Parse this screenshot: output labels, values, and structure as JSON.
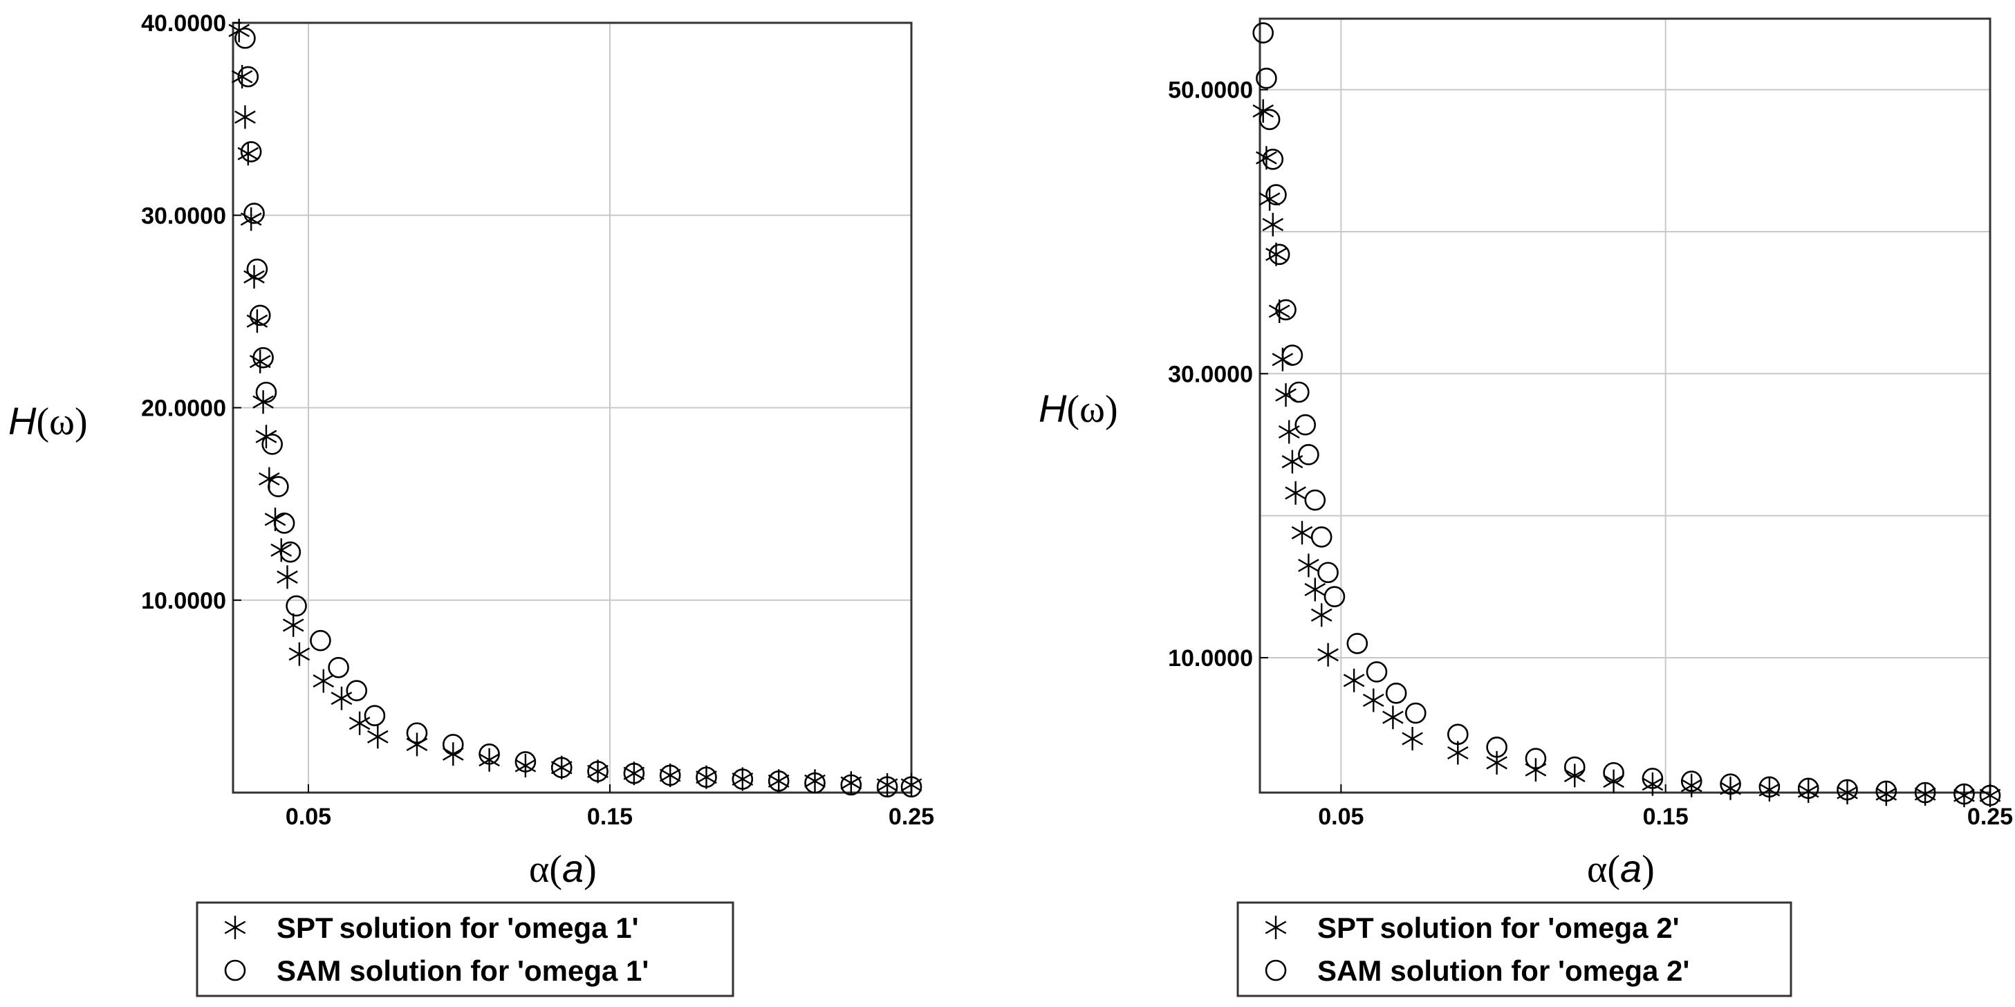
{
  "chart_data": [
    {
      "type": "scatter",
      "title": "",
      "xlabel": {
        "symbol": "α",
        "lparen": "(",
        "var": "a",
        "rparen": ")"
      },
      "ylabel": {
        "var": "H",
        "lparen": "(",
        "symbol": "ω",
        "rparen": ")"
      },
      "xlim": [
        0.025,
        0.25
      ],
      "ylim": [
        0,
        40
      ],
      "x_ticks": [
        0.05,
        0.15,
        0.25
      ],
      "x_tick_labels": [
        "0.05",
        "0.15",
        "0.25"
      ],
      "y_ticks": [
        10,
        20,
        30,
        40
      ],
      "y_tick_labels": [
        "10.0000",
        "20.0000",
        "30.0000",
        "40.0000"
      ],
      "grid": true,
      "legend_position": "bottom",
      "series": [
        {
          "name": "SPT solution for 'omega 1'",
          "marker": "star",
          "x": [
            0.027,
            0.028,
            0.029,
            0.03,
            0.031,
            0.032,
            0.033,
            0.034,
            0.035,
            0.036,
            0.037,
            0.039,
            0.041,
            0.043,
            0.045,
            0.047,
            0.055,
            0.061,
            0.067,
            0.073,
            0.086,
            0.098,
            0.11,
            0.122,
            0.134,
            0.146,
            0.158,
            0.17,
            0.182,
            0.194,
            0.206,
            0.218,
            0.23,
            0.242,
            0.25
          ],
          "y": [
            39.6,
            37.2,
            35.1,
            33.2,
            29.8,
            26.8,
            24.5,
            22.4,
            20.3,
            18.5,
            16.3,
            14.2,
            12.6,
            11.2,
            8.7,
            7.2,
            5.8,
            4.9,
            3.6,
            2.9,
            2.5,
            2.0,
            1.7,
            1.4,
            1.3,
            1.1,
            1.0,
            0.9,
            0.8,
            0.7,
            0.6,
            0.6,
            0.5,
            0.4,
            0.4
          ]
        },
        {
          "name": "SAM solution for 'omega 1'",
          "marker": "circle",
          "x": [
            0.029,
            0.03,
            0.031,
            0.032,
            0.033,
            0.034,
            0.035,
            0.036,
            0.038,
            0.04,
            0.042,
            0.044,
            0.046,
            0.054,
            0.06,
            0.066,
            0.072,
            0.086,
            0.098,
            0.11,
            0.122,
            0.134,
            0.146,
            0.158,
            0.17,
            0.182,
            0.194,
            0.206,
            0.218,
            0.23,
            0.242,
            0.25
          ],
          "y": [
            39.2,
            37.2,
            33.3,
            30.1,
            27.2,
            24.8,
            22.6,
            20.8,
            18.1,
            15.9,
            14.0,
            12.5,
            9.7,
            7.9,
            6.5,
            5.3,
            4.0,
            3.1,
            2.5,
            2.0,
            1.6,
            1.3,
            1.1,
            1.0,
            0.9,
            0.8,
            0.7,
            0.6,
            0.5,
            0.4,
            0.3,
            0.3
          ]
        }
      ],
      "legend": {
        "entries": [
          {
            "marker": "star",
            "bold": "SPT",
            "rest": "solution for 'omega 1'"
          },
          {
            "marker": "circle",
            "bold": "SAM",
            "rest": "solution for 'omega 1'"
          }
        ]
      }
    },
    {
      "type": "scatter",
      "title": "",
      "xlabel": {
        "symbol": "α",
        "lparen": "(",
        "var": "a",
        "rparen": ")"
      },
      "ylabel": {
        "var": "H",
        "lparen": "(",
        "symbol": "ω",
        "rparen": ")"
      },
      "xlim": [
        0.025,
        0.25
      ],
      "ylim": [
        0,
        55
      ],
      "x_ticks": [
        0.05,
        0.15,
        0.25
      ],
      "x_tick_labels": [
        "0.05",
        "0.15",
        "0.25"
      ],
      "y_ticks": [
        10,
        30,
        50
      ],
      "y_tick_labels": [
        "10.0000",
        "30.0000",
        "50.0000"
      ],
      "grid_y": [
        10,
        20,
        30,
        40,
        50
      ],
      "grid": true,
      "legend_position": "bottom",
      "series": [
        {
          "name": "SPT solution for 'omega 2'",
          "marker": "star",
          "x": [
            0.026,
            0.027,
            0.028,
            0.029,
            0.03,
            0.031,
            0.032,
            0.033,
            0.034,
            0.035,
            0.036,
            0.038,
            0.04,
            0.042,
            0.044,
            0.046,
            0.054,
            0.06,
            0.066,
            0.072,
            0.086,
            0.098,
            0.11,
            0.122,
            0.134,
            0.146,
            0.158,
            0.17,
            0.182,
            0.194,
            0.206,
            0.218,
            0.23,
            0.242,
            0.25
          ],
          "y": [
            48.5,
            45.2,
            42.3,
            40.5,
            38.4,
            34.4,
            31.0,
            28.5,
            25.9,
            23.8,
            21.6,
            18.8,
            16.5,
            14.8,
            13.0,
            10.2,
            8.4,
            7.0,
            5.8,
            4.3,
            3.3,
            2.6,
            2.1,
            1.7,
            1.3,
            1.1,
            1.0,
            0.8,
            0.7,
            0.6,
            0.5,
            0.4,
            0.4,
            0.3,
            0.3
          ]
        },
        {
          "name": "SAM solution for 'omega 2'",
          "marker": "circle",
          "x": [
            0.026,
            0.027,
            0.028,
            0.029,
            0.03,
            0.031,
            0.033,
            0.035,
            0.037,
            0.039,
            0.04,
            0.042,
            0.044,
            0.046,
            0.048,
            0.055,
            0.061,
            0.067,
            0.073,
            0.086,
            0.098,
            0.11,
            0.122,
            0.134,
            0.146,
            0.158,
            0.17,
            0.182,
            0.194,
            0.206,
            0.218,
            0.23,
            0.242,
            0.25
          ],
          "y": [
            54.0,
            50.8,
            47.9,
            45.1,
            42.6,
            38.4,
            34.5,
            31.3,
            28.7,
            26.4,
            24.3,
            21.1,
            18.5,
            16.0,
            14.3,
            11.0,
            9.0,
            7.5,
            6.1,
            4.6,
            3.7,
            2.9,
            2.3,
            1.9,
            1.5,
            1.3,
            1.1,
            0.9,
            0.8,
            0.7,
            0.6,
            0.5,
            0.4,
            0.3
          ]
        }
      ],
      "legend": {
        "entries": [
          {
            "marker": "star",
            "bold": "SPT",
            "rest": "solution for 'omega 2'"
          },
          {
            "marker": "circle",
            "bold": "SAM",
            "rest": "solution for 'omega 2'"
          }
        ]
      }
    }
  ]
}
